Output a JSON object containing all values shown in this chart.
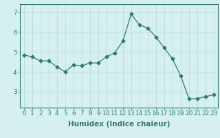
{
  "x": [
    0,
    1,
    2,
    3,
    4,
    5,
    6,
    7,
    8,
    9,
    10,
    11,
    12,
    13,
    14,
    15,
    16,
    17,
    18,
    19,
    20,
    21,
    22,
    23
  ],
  "y": [
    4.85,
    4.75,
    4.55,
    4.55,
    4.25,
    4.0,
    4.35,
    4.3,
    4.45,
    4.45,
    4.75,
    4.95,
    5.55,
    6.9,
    6.35,
    6.2,
    5.75,
    5.2,
    4.65,
    3.8,
    2.65,
    2.65,
    2.75,
    2.85
  ],
  "line_color": "#2e7d6e",
  "marker": "D",
  "marker_size": 2.5,
  "bg_color": "#d6f0f0",
  "grid_color": "#b8d8d8",
  "xlabel": "Humidex (Indice chaleur)",
  "ylim": [
    2.2,
    7.4
  ],
  "xlim": [
    -0.5,
    23.5
  ],
  "yticks": [
    3,
    4,
    5,
    6,
    7
  ],
  "xticks": [
    0,
    1,
    2,
    3,
    4,
    5,
    6,
    7,
    8,
    9,
    10,
    11,
    12,
    13,
    14,
    15,
    16,
    17,
    18,
    19,
    20,
    21,
    22,
    23
  ],
  "tick_color": "#2e7d6e",
  "label_color": "#2e7d6e",
  "spine_color": "#2e7d6e",
  "font_size_xlabel": 7.5,
  "font_size_ticks": 6.5
}
